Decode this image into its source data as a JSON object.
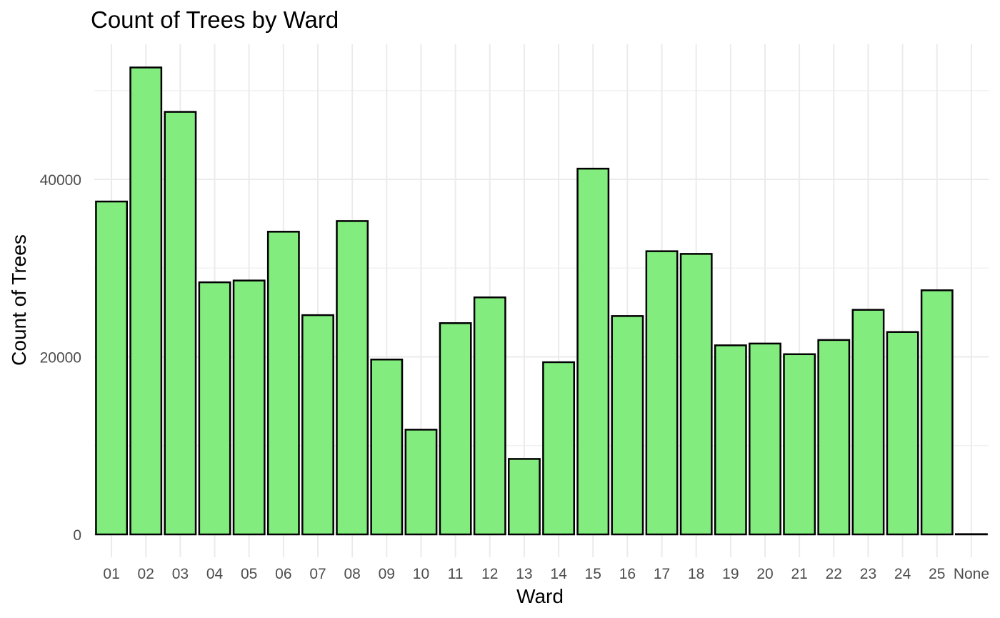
{
  "chart_data": {
    "type": "bar",
    "title": "Count of Trees by Ward",
    "xlabel": "Ward",
    "ylabel": "Count of Trees",
    "categories": [
      "01",
      "02",
      "03",
      "04",
      "05",
      "06",
      "07",
      "08",
      "09",
      "10",
      "11",
      "12",
      "13",
      "14",
      "15",
      "16",
      "17",
      "18",
      "19",
      "20",
      "21",
      "22",
      "23",
      "24",
      "25",
      "None"
    ],
    "values": [
      37500,
      52600,
      47600,
      28400,
      28600,
      34100,
      24700,
      35300,
      19700,
      11800,
      23800,
      26700,
      8500,
      19400,
      41200,
      24600,
      31900,
      31600,
      21300,
      21500,
      20300,
      21900,
      25300,
      22800,
      27500,
      30
    ],
    "ylim": [
      0,
      55000
    ],
    "y_ticks": [
      0,
      20000,
      40000
    ],
    "y_tick_labels": [
      "0",
      "20000",
      "40000"
    ],
    "grid": true,
    "bar_fill": "#82ed7e",
    "bar_stroke": "#000000"
  }
}
